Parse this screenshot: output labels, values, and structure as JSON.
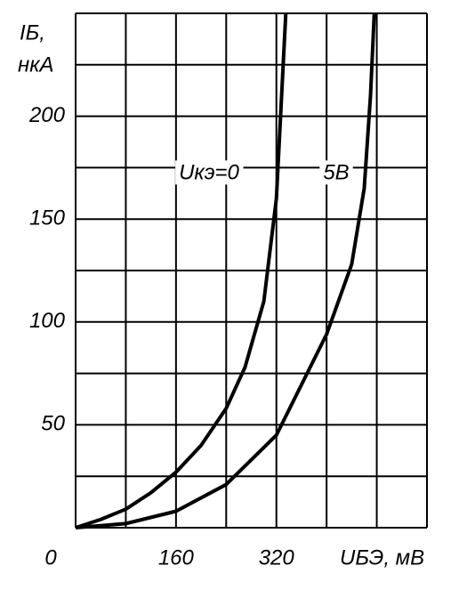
{
  "chart_data": {
    "type": "line",
    "y_label": "IБ,",
    "y_unit": "нкА",
    "x_label": "UБЭ, мВ",
    "xlim": [
      0,
      560
    ],
    "xticks": [
      0,
      160,
      320
    ],
    "x_grid": [
      0,
      80,
      160,
      240,
      320,
      400,
      480,
      560
    ],
    "ylim": [
      0,
      250
    ],
    "yticks": [
      50,
      100,
      150,
      200
    ],
    "y_grid": [
      0,
      25,
      50,
      75,
      100,
      125,
      150,
      175,
      200,
      225,
      250
    ],
    "series": [
      {
        "name": "Uкэ=0",
        "color": "#000000",
        "x": [
          0,
          40,
          80,
          120,
          160,
          200,
          240,
          270,
          300,
          320,
          330,
          335
        ],
        "values": [
          0,
          4,
          9,
          17,
          27,
          40,
          58,
          78,
          110,
          160,
          220,
          250
        ]
      },
      {
        "name": "5В",
        "color": "#000000",
        "x": [
          0,
          80,
          160,
          240,
          320,
          400,
          440,
          460,
          470,
          476
        ],
        "values": [
          0,
          2,
          8,
          21,
          45,
          94,
          128,
          165,
          210,
          250
        ]
      }
    ]
  }
}
